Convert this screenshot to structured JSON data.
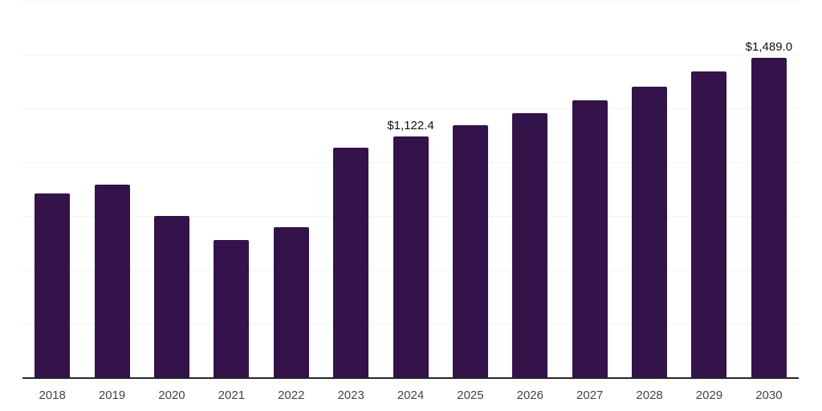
{
  "chart_data": {
    "type": "bar",
    "title": "",
    "xlabel": "",
    "ylabel": "",
    "categories": [
      "2018",
      "2019",
      "2020",
      "2021",
      "2022",
      "2023",
      "2024",
      "2025",
      "2026",
      "2027",
      "2028",
      "2029",
      "2030"
    ],
    "values": [
      859,
      900,
      755,
      640,
      703,
      1071,
      1122.4,
      1175,
      1231,
      1290,
      1353,
      1424,
      1489
    ],
    "point_labels": [
      "",
      "",
      "",
      "",
      "",
      "",
      "$1,122.4",
      "",
      "",
      "",
      "",
      "",
      "$1,489.0"
    ],
    "ylim": [
      0,
      1750
    ],
    "gridline_step": 250,
    "grid": true,
    "legend_position": "none",
    "tick_labels_y_visible": false
  },
  "colors": {
    "bar": "#34124a",
    "axis_line": "#262626",
    "gridline": "#f2f2f2",
    "data_label": "#111111",
    "tick_label": "#444444",
    "background": "#ffffff"
  }
}
